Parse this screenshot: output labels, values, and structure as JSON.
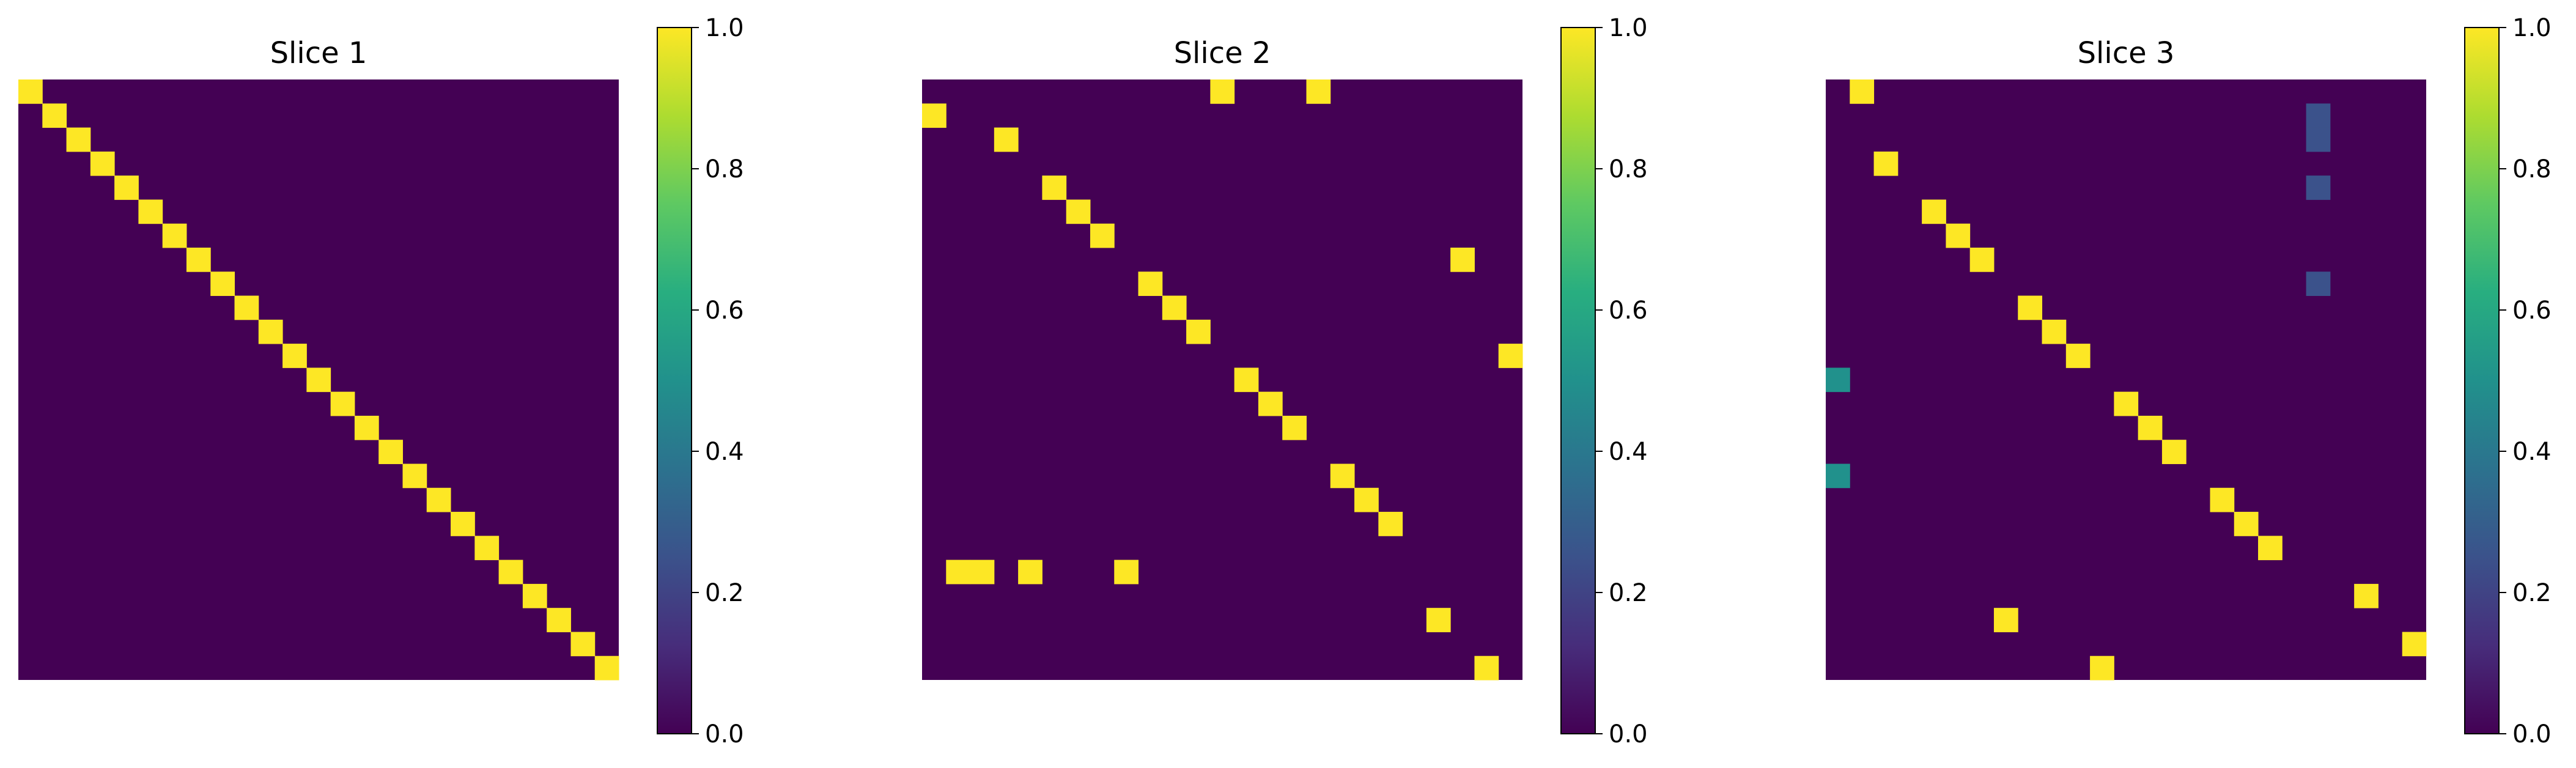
{
  "chart_data": [
    {
      "type": "heatmap",
      "title": "Slice 1",
      "rows": 25,
      "cols": 25,
      "colormap": "viridis",
      "zlim": [
        0.0,
        1.0
      ],
      "colorbar_ticks": [
        "0.0",
        "0.2",
        "0.4",
        "0.6",
        "0.8",
        "1.0"
      ],
      "background_value": 0.0,
      "nonzero_cells": [
        {
          "row": 0,
          "col": 0,
          "value": 1.0
        },
        {
          "row": 1,
          "col": 1,
          "value": 1.0
        },
        {
          "row": 2,
          "col": 2,
          "value": 1.0
        },
        {
          "row": 3,
          "col": 3,
          "value": 1.0
        },
        {
          "row": 4,
          "col": 4,
          "value": 1.0
        },
        {
          "row": 5,
          "col": 5,
          "value": 1.0
        },
        {
          "row": 6,
          "col": 6,
          "value": 1.0
        },
        {
          "row": 7,
          "col": 7,
          "value": 1.0
        },
        {
          "row": 8,
          "col": 8,
          "value": 1.0
        },
        {
          "row": 9,
          "col": 9,
          "value": 1.0
        },
        {
          "row": 10,
          "col": 10,
          "value": 1.0
        },
        {
          "row": 11,
          "col": 11,
          "value": 1.0
        },
        {
          "row": 12,
          "col": 12,
          "value": 1.0
        },
        {
          "row": 13,
          "col": 13,
          "value": 1.0
        },
        {
          "row": 14,
          "col": 14,
          "value": 1.0
        },
        {
          "row": 15,
          "col": 15,
          "value": 1.0
        },
        {
          "row": 16,
          "col": 16,
          "value": 1.0
        },
        {
          "row": 17,
          "col": 17,
          "value": 1.0
        },
        {
          "row": 18,
          "col": 18,
          "value": 1.0
        },
        {
          "row": 19,
          "col": 19,
          "value": 1.0
        },
        {
          "row": 20,
          "col": 20,
          "value": 1.0
        },
        {
          "row": 21,
          "col": 21,
          "value": 1.0
        },
        {
          "row": 22,
          "col": 22,
          "value": 1.0
        },
        {
          "row": 23,
          "col": 23,
          "value": 1.0
        },
        {
          "row": 24,
          "col": 24,
          "value": 1.0
        }
      ]
    },
    {
      "type": "heatmap",
      "title": "Slice 2",
      "rows": 25,
      "cols": 25,
      "colormap": "viridis",
      "zlim": [
        0.0,
        1.0
      ],
      "colorbar_ticks": [
        "0.0",
        "0.2",
        "0.4",
        "0.6",
        "0.8",
        "1.0"
      ],
      "background_value": 0.0,
      "nonzero_cells": [
        {
          "row": 0,
          "col": 12,
          "value": 1.0
        },
        {
          "row": 0,
          "col": 16,
          "value": 1.0
        },
        {
          "row": 1,
          "col": 0,
          "value": 1.0
        },
        {
          "row": 2,
          "col": 3,
          "value": 1.0
        },
        {
          "row": 4,
          "col": 5,
          "value": 1.0
        },
        {
          "row": 5,
          "col": 6,
          "value": 1.0
        },
        {
          "row": 6,
          "col": 7,
          "value": 1.0
        },
        {
          "row": 7,
          "col": 22,
          "value": 1.0
        },
        {
          "row": 8,
          "col": 9,
          "value": 1.0
        },
        {
          "row": 9,
          "col": 10,
          "value": 1.0
        },
        {
          "row": 10,
          "col": 11,
          "value": 1.0
        },
        {
          "row": 11,
          "col": 24,
          "value": 1.0
        },
        {
          "row": 12,
          "col": 13,
          "value": 1.0
        },
        {
          "row": 13,
          "col": 14,
          "value": 1.0
        },
        {
          "row": 14,
          "col": 15,
          "value": 1.0
        },
        {
          "row": 16,
          "col": 17,
          "value": 1.0
        },
        {
          "row": 17,
          "col": 18,
          "value": 1.0
        },
        {
          "row": 18,
          "col": 19,
          "value": 1.0
        },
        {
          "row": 20,
          "col": 1,
          "value": 1.0
        },
        {
          "row": 20,
          "col": 2,
          "value": 1.0
        },
        {
          "row": 20,
          "col": 4,
          "value": 1.0
        },
        {
          "row": 20,
          "col": 8,
          "value": 1.0
        },
        {
          "row": 22,
          "col": 21,
          "value": 1.0
        },
        {
          "row": 24,
          "col": 23,
          "value": 1.0
        }
      ]
    },
    {
      "type": "heatmap",
      "title": "Slice 3",
      "rows": 25,
      "cols": 25,
      "colormap": "viridis",
      "zlim": [
        0.0,
        1.0
      ],
      "colorbar_ticks": [
        "0.0",
        "0.2",
        "0.4",
        "0.6",
        "0.8",
        "1.0"
      ],
      "background_value": 0.0,
      "nonzero_cells": [
        {
          "row": 0,
          "col": 1,
          "value": 1.0
        },
        {
          "row": 1,
          "col": 20,
          "value": 0.25
        },
        {
          "row": 2,
          "col": 20,
          "value": 0.25
        },
        {
          "row": 3,
          "col": 2,
          "value": 1.0
        },
        {
          "row": 4,
          "col": 20,
          "value": 0.25
        },
        {
          "row": 5,
          "col": 4,
          "value": 1.0
        },
        {
          "row": 6,
          "col": 5,
          "value": 1.0
        },
        {
          "row": 7,
          "col": 6,
          "value": 1.0
        },
        {
          "row": 8,
          "col": 20,
          "value": 0.25
        },
        {
          "row": 9,
          "col": 8,
          "value": 1.0
        },
        {
          "row": 10,
          "col": 9,
          "value": 1.0
        },
        {
          "row": 11,
          "col": 10,
          "value": 1.0
        },
        {
          "row": 12,
          "col": 0,
          "value": 0.5
        },
        {
          "row": 13,
          "col": 12,
          "value": 1.0
        },
        {
          "row": 14,
          "col": 13,
          "value": 1.0
        },
        {
          "row": 15,
          "col": 14,
          "value": 1.0
        },
        {
          "row": 16,
          "col": 0,
          "value": 0.5
        },
        {
          "row": 17,
          "col": 16,
          "value": 1.0
        },
        {
          "row": 18,
          "col": 17,
          "value": 1.0
        },
        {
          "row": 19,
          "col": 18,
          "value": 1.0
        },
        {
          "row": 21,
          "col": 22,
          "value": 1.0
        },
        {
          "row": 22,
          "col": 7,
          "value": 1.0
        },
        {
          "row": 23,
          "col": 24,
          "value": 1.0
        },
        {
          "row": 24,
          "col": 11,
          "value": 1.0
        }
      ]
    }
  ]
}
